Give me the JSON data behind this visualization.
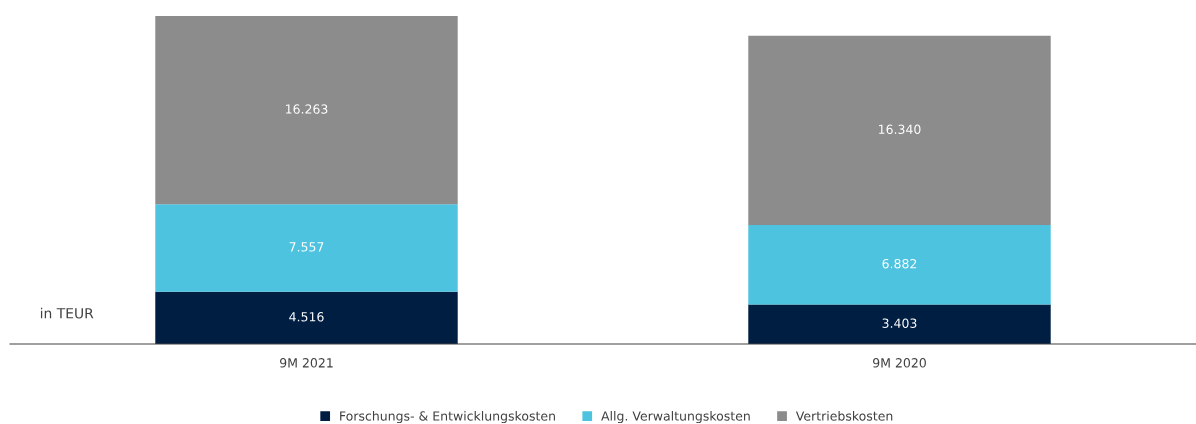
{
  "chart_data": {
    "type": "bar",
    "stacked": true,
    "categories": [
      "9M 2021",
      "9M 2020"
    ],
    "series": [
      {
        "name": "Forschungs- & Entwicklungskosten",
        "color": "#001e42",
        "values": [
          4516,
          3403
        ],
        "value_labels": [
          "4.516",
          "3.403"
        ]
      },
      {
        "name": "Allg. Verwaltungskosten",
        "color": "#4dc3df",
        "values": [
          7557,
          6882
        ],
        "value_labels": [
          "7.557",
          "6.882"
        ]
      },
      {
        "name": "Vertriebskosten",
        "color": "#8c8c8c",
        "values": [
          16263,
          16340
        ],
        "value_labels": [
          "16.263",
          "16.340"
        ]
      }
    ],
    "annotations": [
      "in TEUR"
    ],
    "legend": "bottom",
    "grid": false,
    "tick_labels": "x"
  }
}
